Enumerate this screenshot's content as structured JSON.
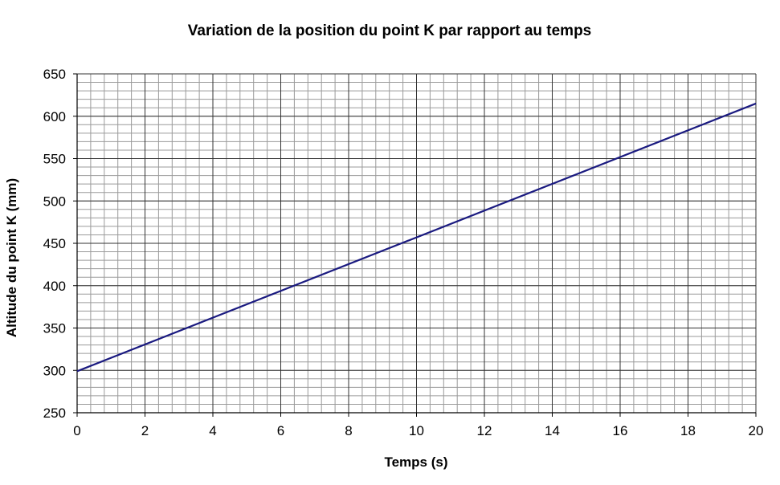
{
  "chart_data": {
    "type": "line",
    "title": "Variation de la position du point K par rapport au temps",
    "xlabel": "Temps (s)",
    "ylabel": "Altitude du point K (mm)",
    "xlim": [
      0,
      20
    ],
    "ylim": [
      250,
      650
    ],
    "x_ticks": [
      0,
      2,
      4,
      6,
      8,
      10,
      12,
      14,
      16,
      18,
      20
    ],
    "y_ticks": [
      250,
      300,
      350,
      400,
      450,
      500,
      550,
      600,
      650
    ],
    "x_minor_step": 0.4,
    "y_minor_step": 10,
    "grid": true,
    "legend": "none",
    "series": [
      {
        "color": "#1a1a80",
        "x": [
          0,
          20
        ],
        "y": [
          299,
          615
        ]
      }
    ]
  }
}
